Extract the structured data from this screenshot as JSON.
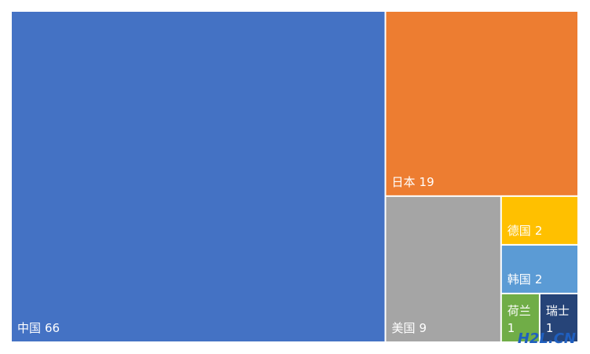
{
  "chart_data": {
    "type": "treemap",
    "categories": [
      "中国",
      "日本",
      "美国",
      "德国",
      "韩国",
      "荷兰",
      "瑞士"
    ],
    "values": [
      66,
      19,
      9,
      2,
      2,
      1,
      1
    ],
    "colors": [
      "#4472c4",
      "#ed7d31",
      "#a5a5a5",
      "#ffc000",
      "#5b9bd5",
      "#70ad47",
      "#264478"
    ]
  },
  "watermark": "H2L.CN"
}
